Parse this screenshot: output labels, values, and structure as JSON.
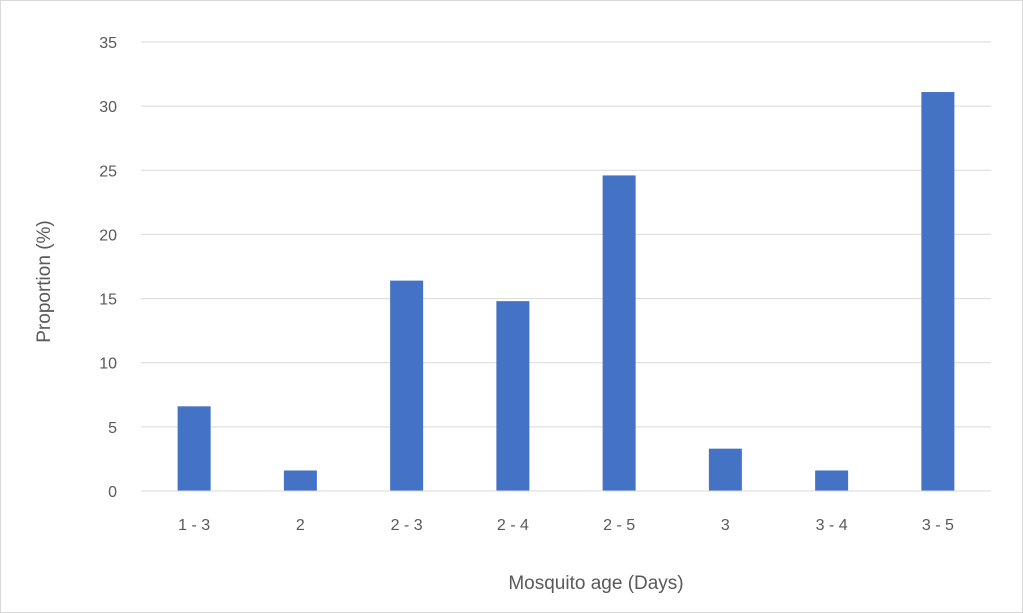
{
  "chart_data": {
    "type": "bar",
    "categories": [
      "1 - 3",
      "2",
      "2 - 3",
      "2 - 4",
      "2 - 5",
      "3",
      "3 - 4",
      "3 - 5"
    ],
    "values": [
      6.6,
      1.6,
      16.4,
      14.8,
      24.6,
      3.3,
      1.6,
      31.1
    ],
    "xlabel": "Mosquito age (Days)",
    "ylabel": "Proportion (%)",
    "ylim": [
      0,
      35
    ],
    "yticks": [
      "0",
      "5",
      "10",
      "15",
      "20",
      "25",
      "30",
      "35"
    ],
    "grid": true,
    "legend": "none",
    "bar_color": "#4472c4"
  }
}
